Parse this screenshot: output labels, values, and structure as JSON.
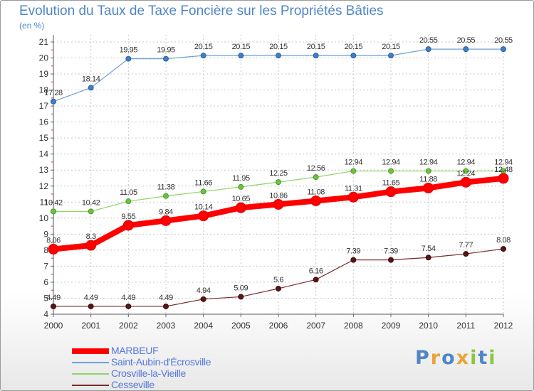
{
  "title": "Evolution du Taux de Taxe Foncière sur les Propriétés Bâties",
  "subtitle": "(en %)",
  "brand": {
    "letters": [
      "P",
      "r",
      "o",
      "x",
      "i",
      "t",
      "i"
    ],
    "colors": [
      "#4f86c6",
      "#e8a33a",
      "#4f86c6",
      "#e8a33a",
      "#8cc63f",
      "#4f86c6",
      "#8cc63f"
    ]
  },
  "chart_data": {
    "type": "line",
    "title": "Evolution du Taux de Taxe Foncière sur les Propriétés Bâties",
    "ylabel": "(en %)",
    "xlabel": "",
    "x": [
      "2000",
      "2001",
      "2002",
      "2003",
      "2004",
      "2005",
      "2006",
      "2007",
      "2008",
      "2009",
      "2010",
      "2011",
      "2012"
    ],
    "ylim": [
      4,
      21
    ],
    "yticks": [
      "4",
      "5",
      "6",
      "7",
      "8",
      "9",
      "10",
      "11",
      "12",
      "13",
      "14",
      "15",
      "16",
      "17",
      "18",
      "19",
      "20",
      "21"
    ],
    "grid": "dashed vertical and horizontal",
    "legend_position": "bottom-left",
    "series": [
      {
        "name": "MARBEUF",
        "color": "#ff0000",
        "values": [
          8.06,
          8.3,
          9.55,
          9.84,
          10.14,
          10.65,
          10.86,
          11.08,
          11.31,
          11.65,
          11.88,
          12.24,
          12.48
        ],
        "labels": [
          "8.06",
          "8.3",
          "9.55",
          "9.84",
          "10.14",
          "10.65",
          "10.86",
          "11.08",
          "11.31",
          "11.65",
          "11.88",
          "12.24",
          "12.48"
        ]
      },
      {
        "name": "Saint-Aubin-d'Écrosville",
        "color": "#6fa0d8",
        "values": [
          17.28,
          18.14,
          19.95,
          19.95,
          20.15,
          20.15,
          20.15,
          20.15,
          20.15,
          20.15,
          20.55,
          20.55,
          20.55
        ],
        "labels": [
          "17.28",
          "18.14",
          "19.95",
          "19.95",
          "20.15",
          "20.15",
          "20.15",
          "20.15",
          "20.15",
          "20.15",
          "20.55",
          "20.55",
          "20.55"
        ]
      },
      {
        "name": "Crosville-la-Vieille",
        "color": "#8fd46b",
        "values": [
          10.42,
          10.42,
          11.05,
          11.38,
          11.66,
          11.95,
          12.25,
          12.56,
          12.94,
          12.94,
          12.94,
          12.94,
          12.94
        ],
        "labels": [
          "10.42",
          "10.42",
          "11.05",
          "11.38",
          "11.66",
          "11.95",
          "12.25",
          "12.56",
          "12.94",
          "12.94",
          "12.94",
          "12.94",
          "12.94"
        ]
      },
      {
        "name": "Cesseville",
        "color": "#7a2a2a",
        "values": [
          4.49,
          4.49,
          4.49,
          4.49,
          4.94,
          5.09,
          5.6,
          6.16,
          7.39,
          7.39,
          7.54,
          7.77,
          8.08
        ],
        "labels": [
          "4.49",
          "4.49",
          "4.49",
          "4.49",
          "4.94",
          "5.09",
          "5.6",
          "6.16",
          "7.39",
          "7.39",
          "7.54",
          "7.77",
          "8.08"
        ]
      }
    ]
  }
}
